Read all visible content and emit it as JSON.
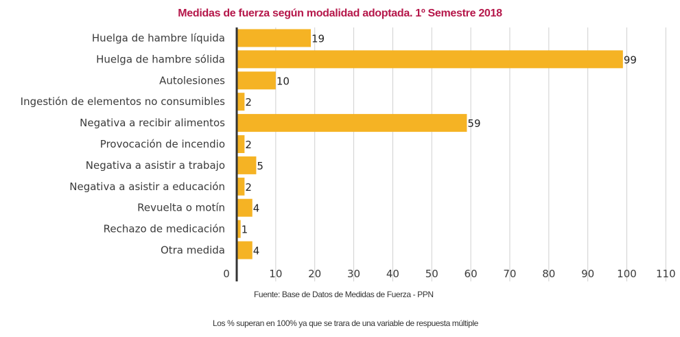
{
  "chart_data": {
    "type": "bar",
    "orientation": "horizontal",
    "title": "Medidas de fuerza según modalidad adoptada. 1º Semestre 2018",
    "categories": [
      "Huelga de hambre líquida",
      "Huelga de hambre sólida",
      "Autolesiones",
      "Ingestión de elementos no consumibles",
      "Negativa a recibir alimentos",
      "Provocación de incendio",
      "Negativa a asistir a trabajo",
      "Negativa a asistir a educación",
      "Revuelta o motín",
      "Rechazo de medicación",
      "Otra medida"
    ],
    "values": [
      19,
      99,
      10,
      2,
      59,
      2,
      5,
      2,
      4,
      1,
      4
    ],
    "tick_labels": [
      "0",
      "10",
      "20",
      "30",
      "40",
      "50",
      "60",
      "70",
      "80",
      "90",
      "100",
      "110"
    ],
    "xlim": [
      0,
      110
    ],
    "grid": "vertical",
    "bar_color": "#f5b324",
    "grid_color": "#cfcfcf",
    "axis_color": "#333333"
  },
  "source": "Fuente: Base de Datos de Medidas de Fuerza - PPN",
  "footnote": "Los % superan en 100% ya que se trara de una variable de respuesta múltiple",
  "colors": {
    "title": "#b5174a",
    "bar": "#f5b324"
  }
}
